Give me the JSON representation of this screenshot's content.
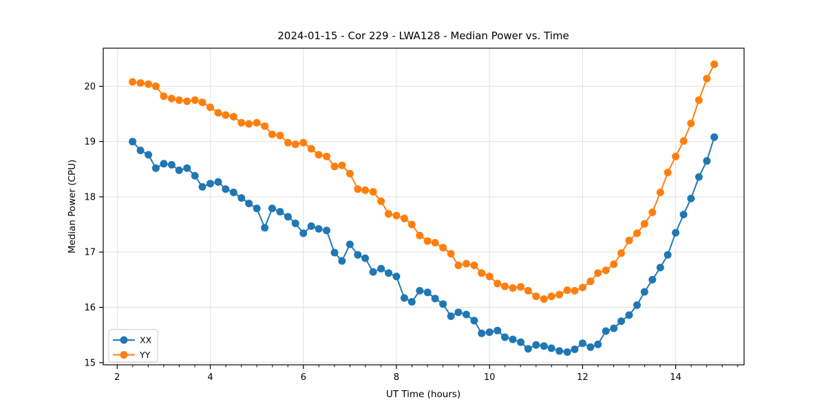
{
  "figure": {
    "background": "#ffffff"
  },
  "chart_data": {
    "type": "line",
    "title": "2024-01-15 - Cor 229 - LWA128 - Median Power vs. Time",
    "xlabel": "UT Time (hours)",
    "ylabel": "Median Power (CPU)",
    "xlim": [
      1.7,
      15.47
    ],
    "ylim": [
      14.96,
      20.69
    ],
    "x_major_ticks": [
      2,
      4,
      6,
      8,
      10,
      12,
      14
    ],
    "x_minor_tick_step": 0.3333,
    "y_major_ticks": [
      15,
      16,
      17,
      18,
      19,
      20
    ],
    "grid": true,
    "grid_color": "#e0e0e0",
    "legend_position": "lower left",
    "marker": "circle",
    "marker_radius": 5.5,
    "line_width": 2,
    "x": [
      2.33,
      2.5,
      2.67,
      2.83,
      3.0,
      3.17,
      3.33,
      3.5,
      3.67,
      3.83,
      4.0,
      4.17,
      4.33,
      4.5,
      4.67,
      4.83,
      5.0,
      5.17,
      5.33,
      5.5,
      5.67,
      5.83,
      6.0,
      6.17,
      6.33,
      6.5,
      6.67,
      6.83,
      7.0,
      7.17,
      7.33,
      7.5,
      7.67,
      7.83,
      8.0,
      8.17,
      8.33,
      8.5,
      8.67,
      8.83,
      9.0,
      9.17,
      9.33,
      9.5,
      9.67,
      9.83,
      10.0,
      10.17,
      10.33,
      10.5,
      10.67,
      10.83,
      11.0,
      11.17,
      11.33,
      11.5,
      11.67,
      11.83,
      12.0,
      12.17,
      12.33,
      12.5,
      12.67,
      12.83,
      13.0,
      13.17,
      13.33,
      13.5,
      13.67,
      13.83,
      14.0,
      14.17,
      14.33,
      14.5,
      14.67,
      14.83
    ],
    "series": [
      {
        "name": "XX",
        "color": "#1f77b4",
        "values": [
          19.0,
          18.84,
          18.76,
          18.52,
          18.6,
          18.58,
          18.48,
          18.52,
          18.38,
          18.18,
          18.24,
          18.27,
          18.14,
          18.08,
          17.98,
          17.88,
          17.79,
          17.44,
          17.79,
          17.73,
          17.64,
          17.52,
          17.34,
          17.47,
          17.42,
          17.39,
          16.99,
          16.84,
          17.14,
          16.95,
          16.89,
          16.64,
          16.7,
          16.62,
          16.56,
          16.17,
          16.1,
          16.3,
          16.27,
          16.16,
          16.06,
          15.84,
          15.91,
          15.87,
          15.76,
          15.53,
          15.55,
          15.58,
          15.46,
          15.42,
          15.37,
          15.25,
          15.32,
          15.3,
          15.26,
          15.21,
          15.19,
          15.24,
          15.35,
          15.28,
          15.33,
          15.57,
          15.62,
          15.75,
          15.86,
          16.04,
          16.28,
          16.5,
          16.72,
          16.95,
          17.35,
          17.68,
          17.97,
          18.36,
          18.65,
          19.08
        ]
      },
      {
        "name": "YY",
        "color": "#ff7f0e",
        "values": [
          20.08,
          20.06,
          20.04,
          20.0,
          19.82,
          19.78,
          19.75,
          19.73,
          19.75,
          19.71,
          19.62,
          19.52,
          19.48,
          19.45,
          19.34,
          19.32,
          19.34,
          19.28,
          19.13,
          19.11,
          18.98,
          18.95,
          18.98,
          18.87,
          18.76,
          18.73,
          18.55,
          18.57,
          18.42,
          18.14,
          18.12,
          18.09,
          17.92,
          17.69,
          17.66,
          17.61,
          17.5,
          17.3,
          17.2,
          17.17,
          17.08,
          16.97,
          16.76,
          16.79,
          16.76,
          16.62,
          16.56,
          16.43,
          16.38,
          16.35,
          16.37,
          16.3,
          16.2,
          16.15,
          16.2,
          16.23,
          16.31,
          16.3,
          16.36,
          16.47,
          16.62,
          16.67,
          16.78,
          16.98,
          17.21,
          17.34,
          17.51,
          17.72,
          18.08,
          18.44,
          18.73,
          19.01,
          19.33,
          19.75,
          20.14,
          20.4
        ]
      }
    ]
  }
}
